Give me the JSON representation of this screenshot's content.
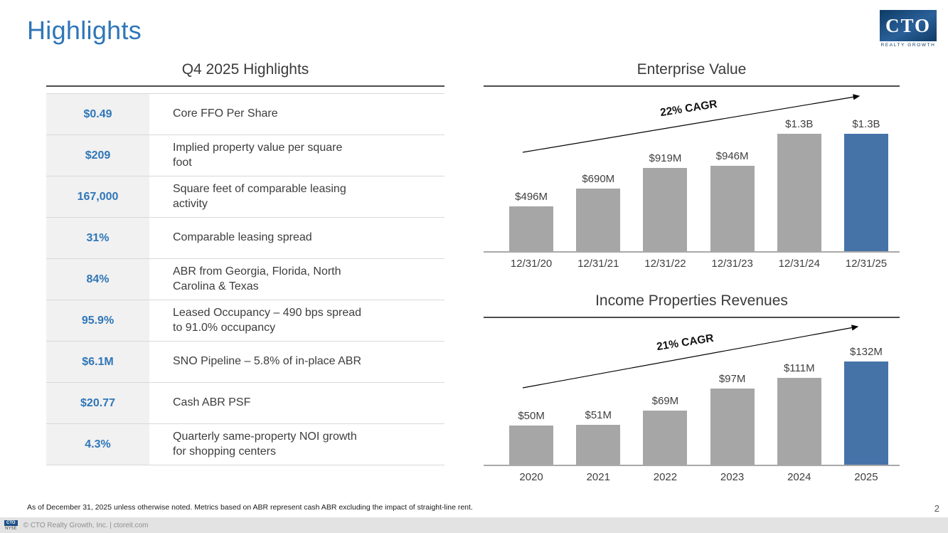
{
  "slide": {
    "title": "Highlights",
    "page_number": "2",
    "footnote": "As of December 31, 2025 unless otherwise noted. Metrics based on ABR represent cash ABR excluding the impact of straight-line rent.",
    "copyright": "© CTO Realty Growth, Inc. | ctoreit.com",
    "ticker": {
      "symbol": "CTO",
      "exchange": "NYSE"
    }
  },
  "logo": {
    "text": "CTO",
    "subtext": "REALTY GROWTH"
  },
  "highlights": {
    "title": "Q4 2025 Highlights",
    "rows": [
      {
        "value": "$0.49",
        "label": "Core FFO Per Share"
      },
      {
        "value": "$209",
        "label": "Implied property value per square\nfoot"
      },
      {
        "value": "167,000",
        "label": "Square feet of comparable leasing\nactivity"
      },
      {
        "value": "31%",
        "label": "Comparable leasing spread"
      },
      {
        "value": "84%",
        "label": "ABR from Georgia, Florida, North\nCarolina & Texas"
      },
      {
        "value": "95.9%",
        "label": "Leased Occupancy – 490 bps spread\nto 91.0% occupancy"
      },
      {
        "value": "$6.1M",
        "label": "SNO Pipeline – 5.8% of in-place ABR"
      },
      {
        "value": "$20.77",
        "label": "Cash ABR PSF"
      },
      {
        "value": "4.3%",
        "label": "Quarterly same-property NOI growth\nfor shopping centers"
      }
    ]
  },
  "chart_data": [
    {
      "type": "bar",
      "title": "Enterprise Value",
      "categories": [
        "12/31/20",
        "12/31/21",
        "12/31/22",
        "12/31/23",
        "12/31/24",
        "12/31/25"
      ],
      "values": [
        496,
        690,
        919,
        946,
        1300,
        1300
      ],
      "value_labels": [
        "$496M",
        "$690M",
        "$919M",
        "$946M",
        "$1.3B",
        "$1.3B"
      ],
      "annotation": "22% CAGR",
      "highlight_index": 5,
      "ylim": [
        0,
        1400
      ],
      "grid": false,
      "legend": false
    },
    {
      "type": "bar",
      "title": "Income Properties Revenues",
      "categories": [
        "2020",
        "2021",
        "2022",
        "2023",
        "2024",
        "2025"
      ],
      "values": [
        50,
        51,
        69,
        97,
        111,
        132
      ],
      "value_labels": [
        "$50M",
        "$51M",
        "$69M",
        "$97M",
        "$111M",
        "$132M"
      ],
      "annotation": "21% CAGR",
      "highlight_index": 5,
      "ylim": [
        0,
        145
      ],
      "grid": false,
      "legend": false
    }
  ],
  "colors": {
    "accent_blue": "#2f76b8",
    "bar_gray": "#a6a6a6",
    "bar_blue": "#4573a7",
    "footer_gray": "#e3e3e3"
  }
}
